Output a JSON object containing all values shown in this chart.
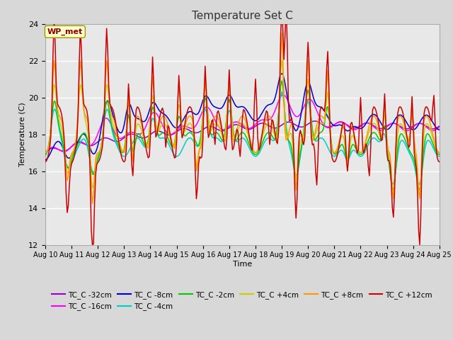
{
  "title": "Temperature Set C",
  "xlabel": "Time",
  "ylabel": "Temperature (C)",
  "ylim": [
    12,
    24
  ],
  "xlim": [
    0,
    360
  ],
  "x_tick_labels": [
    "Aug 10",
    "Aug 11",
    "Aug 12",
    "Aug 13",
    "Aug 14",
    "Aug 15",
    "Aug 16",
    "Aug 17",
    "Aug 18",
    "Aug 19",
    "Aug 20",
    "Aug 21",
    "Aug 22",
    "Aug 23",
    "Aug 24",
    "Aug 25"
  ],
  "x_tick_positions": [
    0,
    24,
    48,
    72,
    96,
    120,
    144,
    168,
    192,
    216,
    240,
    264,
    288,
    312,
    336,
    360
  ],
  "y_tick_labels": [
    "12",
    "14",
    "16",
    "18",
    "20",
    "22",
    "24"
  ],
  "y_tick_values": [
    12,
    14,
    16,
    18,
    20,
    22,
    24
  ],
  "fig_bg_color": "#e0e0e0",
  "plot_bg_color": "#e8e8e8",
  "annotation_text": "WP_met",
  "annotation_color": "#8b0000",
  "annotation_bg": "#ffffcc",
  "annotation_edge": "#999900",
  "series_colors": {
    "TC_C -32cm": "#9900cc",
    "TC_C -16cm": "#ff00ff",
    "TC_C -8cm": "#0000cc",
    "TC_C -4cm": "#00cccc",
    "TC_C -2cm": "#00cc00",
    "TC_C +4cm": "#cccc00",
    "TC_C +8cm": "#ff9900",
    "TC_C +12cm": "#cc0000"
  },
  "legend_order": [
    "TC_C -32cm",
    "TC_C -16cm",
    "TC_C -8cm",
    "TC_C -4cm",
    "TC_C -2cm",
    "TC_C +4cm",
    "TC_C +8cm",
    "TC_C +12cm"
  ],
  "figsize": [
    6.4,
    4.8
  ],
  "dpi": 100
}
